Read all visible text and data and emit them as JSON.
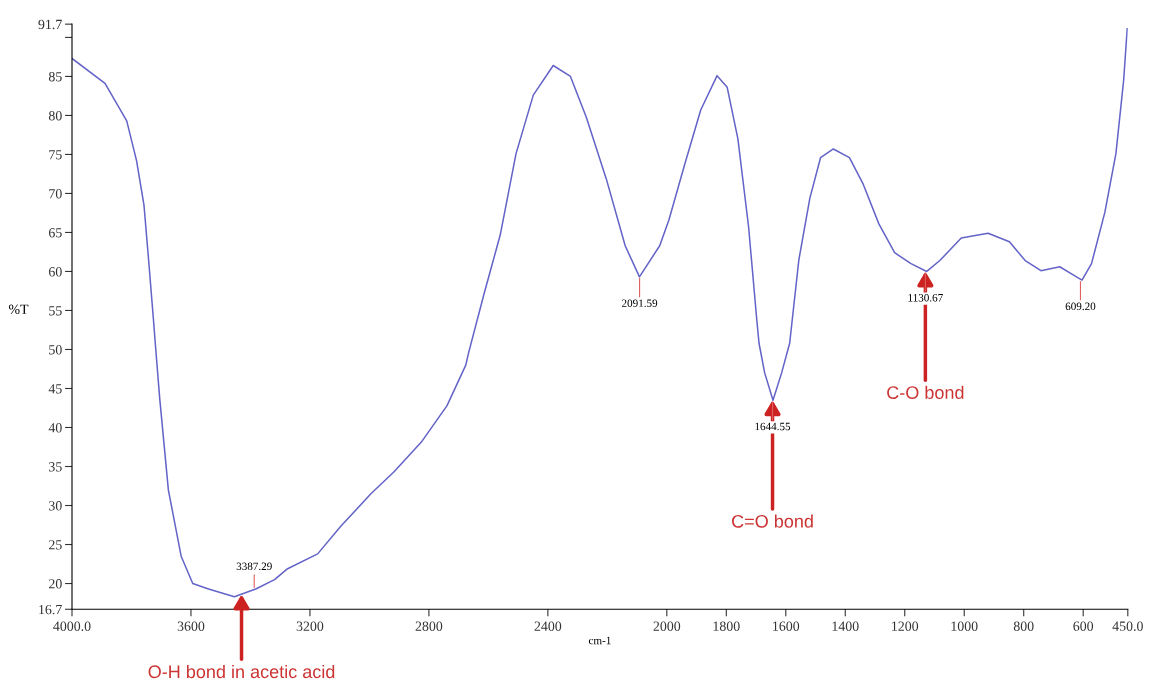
{
  "chart_data": {
    "type": "line",
    "xlabel": "cm-1",
    "ylabel": "%T",
    "x": [
      4000,
      3889,
      3816,
      3783,
      3758,
      3744,
      3725,
      3720,
      3705,
      3676,
      3633,
      3594,
      3541,
      3454,
      3382,
      3319,
      3275,
      3174,
      3097,
      2995,
      2918,
      2826,
      2739,
      2676,
      2667,
      2614,
      2560,
      2507,
      2449,
      2382,
      2324,
      2271,
      2203,
      2140,
      2092,
      2024,
      1993,
      1940,
      1886,
      1831,
      1797,
      1761,
      1725,
      1698,
      1690,
      1671,
      1643,
      1614,
      1587,
      1556,
      1519,
      1483,
      1440,
      1386,
      1341,
      1287,
      1234,
      1179,
      1126,
      1082,
      1010,
      920,
      848,
      795,
      742,
      679,
      635,
      604,
      572,
      527,
      490,
      464,
      452
    ],
    "series": [
      {
        "color": "#6464c8",
        "values": [
          87.3,
          84.1,
          79.3,
          74.2,
          68.5,
          62.2,
          53.3,
          50.8,
          43.7,
          32.0,
          23.5,
          20.0,
          19.3,
          18.3,
          19.3,
          20.5,
          21.9,
          23.8,
          27.3,
          31.5,
          34.3,
          38.1,
          42.8,
          48.0,
          49.5,
          57.2,
          64.7,
          75.1,
          82.6,
          86.4,
          85.0,
          79.8,
          71.8,
          63.3,
          59.3,
          63.3,
          66.6,
          73.7,
          80.7,
          85.1,
          83.6,
          77.0,
          65.7,
          54.0,
          50.8,
          47.0,
          43.5,
          47.0,
          50.8,
          61.5,
          69.4,
          74.6,
          75.7,
          74.6,
          71.3,
          66.1,
          62.4,
          61.0,
          60.0,
          61.4,
          64.3,
          64.9,
          63.8,
          61.4,
          60.1,
          60.6,
          59.6,
          58.9,
          61.0,
          67.6,
          75.1,
          84.5,
          91.1
        ]
      }
    ],
    "xlim": [
      4000,
      450
    ],
    "xticks": [
      {
        "value": 4000,
        "label": "4000.0"
      },
      3600,
      3200,
      2800,
      2400,
      2000,
      1800,
      1600,
      1400,
      1200,
      1000,
      800,
      600,
      {
        "value": 450,
        "label": "450.0"
      }
    ],
    "ylim": [
      16.7,
      91.7
    ],
    "yticks": [
      {
        "value": 16.7,
        "label": "16.7"
      },
      20,
      25,
      30,
      35,
      40,
      45,
      50,
      55,
      60,
      65,
      70,
      75,
      80,
      85,
      {
        "value": 90,
        "label": null
      },
      {
        "value": 91.7,
        "label": "91.7"
      }
    ],
    "grid": false,
    "legend": false,
    "marker": "none",
    "line_style": "solid",
    "annotations": [
      {
        "text": "3387.29",
        "x": 3387.29,
        "y": 19.3
      },
      {
        "text": "2091.59",
        "x": 2091.59,
        "y": 59.3
      },
      {
        "text": "1644.55",
        "x": 1644.55,
        "y": 43.5
      },
      {
        "text": "1130.67",
        "x": 1130.67,
        "y": 60.0
      },
      {
        "text": "609.20",
        "x": 609.2,
        "y": 58.9
      },
      {
        "text": "O-H bond in acetic acid",
        "x": 3430,
        "y": 18.6
      },
      {
        "text": "C=O bond",
        "x": 1644.55,
        "y": 43.5
      },
      {
        "text": "C-O bond",
        "x": 1130.67,
        "y": 60.0
      }
    ]
  }
}
